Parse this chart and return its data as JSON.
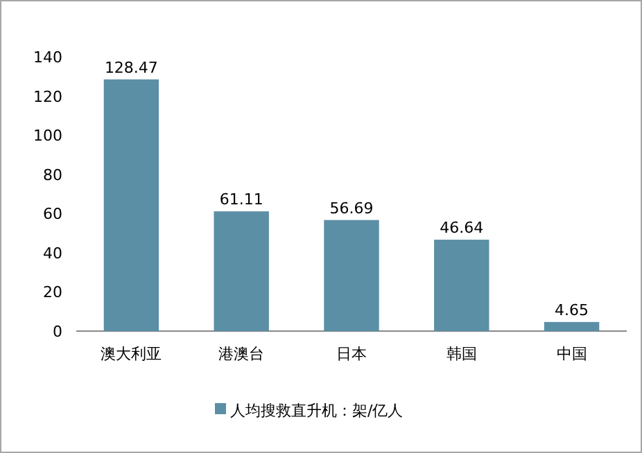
{
  "chart_data": {
    "type": "bar",
    "categories": [
      "澳大利亚",
      "港澳台",
      "日本",
      "韩国",
      "中国"
    ],
    "series": [
      {
        "name": "人均搜救直升机：架/亿人",
        "color": "#5b8fa6",
        "values": [
          128.47,
          61.11,
          56.69,
          46.64,
          4.65
        ]
      }
    ],
    "ylim": [
      0,
      140
    ],
    "yticks": [
      0,
      20,
      40,
      60,
      80,
      100,
      120,
      140
    ],
    "grid": false,
    "legend": "bottom",
    "data_labels": true
  }
}
